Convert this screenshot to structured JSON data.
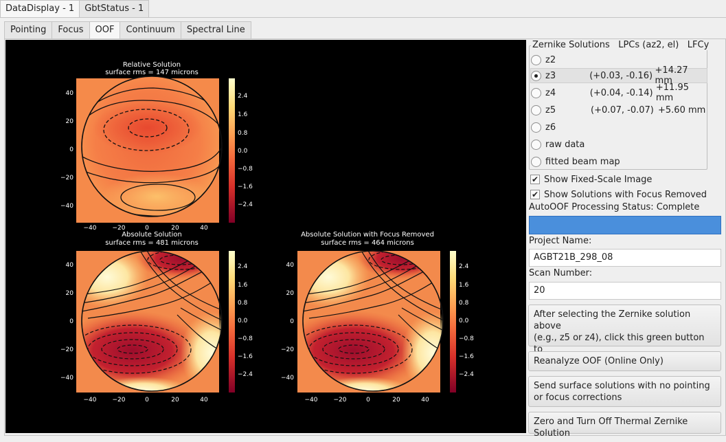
{
  "top_tabs": [
    "DataDisplay - 1",
    "GbtStatus - 1"
  ],
  "sub_tabs": [
    "Pointing",
    "Focus",
    "OOF",
    "Continuum",
    "Spectral Line"
  ],
  "plots": {
    "relative": {
      "title": "Relative Solution",
      "subtitle": "surface rms = 147 microns"
    },
    "absolute": {
      "title": "Absolute Solution",
      "subtitle": "surface rms = 481 microns"
    },
    "absolute_focus_removed": {
      "title": "Absolute Solution with Focus Removed",
      "subtitle": "surface rms = 464 microns"
    },
    "y_ticks": [
      "40",
      "20",
      "0",
      "−20",
      "−40"
    ],
    "x_ticks": [
      "−40",
      "−20",
      "0",
      "20",
      "40"
    ],
    "colorbar_ticks": [
      "2.4",
      "1.6",
      "0.8",
      "0.0",
      "−0.8",
      "−1.6",
      "−2.4"
    ]
  },
  "zernike": {
    "header": {
      "title": "Zernike Solutions",
      "lpc_col": "LPCs (az2, el)",
      "lfc_col": "LFCy"
    },
    "rows": [
      {
        "label": "z2",
        "lpc": "",
        "lfc": "",
        "selected": false
      },
      {
        "label": "z3",
        "lpc": "(+0.03, -0.16)",
        "lfc": "+14.27 mm",
        "selected": true
      },
      {
        "label": "z4",
        "lpc": "(+0.04, -0.14)",
        "lfc": "+11.95 mm",
        "selected": false
      },
      {
        "label": "z5",
        "lpc": "(+0.07, -0.07)",
        "lfc": "+5.60 mm",
        "selected": false
      },
      {
        "label": "z6",
        "lpc": "",
        "lfc": "",
        "selected": false
      },
      {
        "label": "raw data",
        "lpc": "",
        "lfc": "",
        "selected": false
      },
      {
        "label": "fitted beam map",
        "lpc": "",
        "lfc": "",
        "selected": false
      }
    ]
  },
  "options": {
    "fixed_scale": {
      "label": "Show Fixed-Scale Image",
      "checked": true
    },
    "focus_removed": {
      "label": "Show Solutions with Focus Removed",
      "checked": true
    }
  },
  "status": {
    "label": "AutoOOF Processing Status: Complete",
    "progress": 1.0
  },
  "project": {
    "label": "Project Name:",
    "value": "AGBT21B_298_08"
  },
  "scan": {
    "label": "Scan Number:",
    "value": "20"
  },
  "buttons": {
    "send_solutions": "After selecting the Zernike solution above\n(e.g., z5 or z4), click this green button to\nsend the solutions to the telescope.",
    "reanalyze": "Reanalyze OOF (Online Only)",
    "send_no_pointing": "Send surface solutions with no pointing\nor focus corrections",
    "zero_thermal": "Zero and Turn Off Thermal Zernike Solution"
  },
  "colors": {
    "accent": "#4a8fdc",
    "plot_bg": "#000000"
  }
}
